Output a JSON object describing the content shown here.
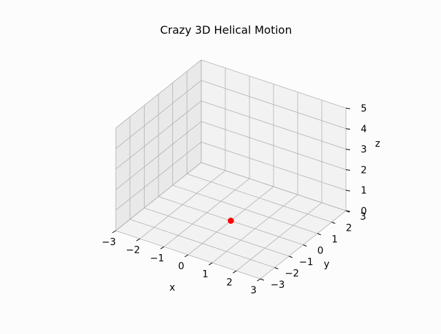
{
  "chart_data": {
    "type": "scatter",
    "projection": "3d",
    "title": "Crazy 3D Helical Motion",
    "xlabel": "x",
    "ylabel": "y",
    "zlabel": "z",
    "xlim": [
      -3,
      3
    ],
    "ylim": [
      -3,
      3
    ],
    "zlim": [
      0,
      5
    ],
    "xticks": [
      "−3",
      "−2",
      "−1",
      "0",
      "1",
      "2",
      "3"
    ],
    "yticks": [
      "−3",
      "−2",
      "−1",
      "0",
      "1",
      "2",
      "3"
    ],
    "zticks": [
      "0",
      "1",
      "2",
      "3",
      "4",
      "5"
    ],
    "grid": true,
    "points": [
      {
        "x": 0,
        "y": 0,
        "z": 0,
        "color": "#ff0000"
      }
    ]
  }
}
